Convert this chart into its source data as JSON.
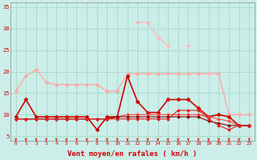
{
  "x": [
    0,
    1,
    2,
    3,
    4,
    5,
    6,
    7,
    8,
    9,
    10,
    11,
    12,
    13,
    14,
    15,
    16,
    17,
    18,
    19,
    20,
    21,
    22,
    23
  ],
  "series": [
    {
      "y": [
        15.5,
        19.0,
        20.5,
        17.5,
        17.0,
        17.0,
        17.0,
        17.0,
        17.0,
        15.5,
        15.5,
        19.5,
        19.5,
        19.5,
        19.5,
        19.5,
        19.5,
        19.5,
        19.5,
        19.5,
        19.5,
        10.0,
        10.0,
        10.0
      ],
      "color": "#ffaaaa",
      "lw": 1.0,
      "marker": "D",
      "ms": 2.0
    },
    {
      "y": [
        9.5,
        13.5,
        9.5,
        9.5,
        9.5,
        9.5,
        9.5,
        9.5,
        6.5,
        9.5,
        9.5,
        19.0,
        13.0,
        10.5,
        10.5,
        13.5,
        13.5,
        13.5,
        11.5,
        9.5,
        10.0,
        9.5,
        7.5,
        7.5
      ],
      "color": "#cc0000",
      "lw": 1.2,
      "marker": "D",
      "ms": 2.0
    },
    {
      "y": [
        9.0,
        9.0,
        9.0,
        9.0,
        9.0,
        9.0,
        9.0,
        9.0,
        9.0,
        9.0,
        9.5,
        10.0,
        10.0,
        10.0,
        10.0,
        10.0,
        10.0,
        10.0,
        10.0,
        9.5,
        9.0,
        8.5,
        7.5,
        7.5
      ],
      "color": "#ff4444",
      "lw": 0.8,
      "marker": "D",
      "ms": 1.5
    },
    {
      "y": [
        9.0,
        9.0,
        9.0,
        9.0,
        9.0,
        9.0,
        9.0,
        9.0,
        9.0,
        9.0,
        9.5,
        9.5,
        9.5,
        9.5,
        9.5,
        9.5,
        9.5,
        9.5,
        9.5,
        8.5,
        8.0,
        7.5,
        7.5,
        7.5
      ],
      "color": "#880000",
      "lw": 0.8,
      "marker": "D",
      "ms": 1.5
    },
    {
      "y": [
        9.0,
        9.0,
        9.0,
        9.0,
        9.0,
        9.0,
        9.0,
        9.0,
        9.0,
        9.0,
        9.0,
        9.0,
        9.0,
        9.0,
        9.0,
        9.0,
        11.0,
        11.0,
        11.0,
        9.0,
        7.5,
        6.5,
        7.5,
        7.5
      ],
      "color": "#dd2222",
      "lw": 0.8,
      "marker": "D",
      "ms": 1.5
    },
    {
      "y": [
        null,
        null,
        null,
        null,
        null,
        null,
        null,
        null,
        null,
        null,
        null,
        null,
        31.5,
        31.5,
        28.0,
        26.0,
        null,
        26.0,
        null,
        19.5,
        null,
        null,
        null,
        null
      ],
      "color": "#ffbbbb",
      "lw": 1.0,
      "marker": "D",
      "ms": 2.0
    }
  ],
  "wind_arrows_x": [
    0,
    1,
    2,
    3,
    4,
    5,
    6,
    7,
    8,
    9,
    10,
    11,
    12,
    13,
    14,
    15,
    16,
    17,
    18,
    19,
    20,
    21,
    22,
    23
  ],
  "xlabel": "Vent moyen/en rafales ( km/h )",
  "ylabel_ticks": [
    5,
    10,
    15,
    20,
    25,
    30,
    35
  ],
  "ylim": [
    4,
    36
  ],
  "xlim": [
    -0.5,
    23.5
  ],
  "bg_color": "#cceee8",
  "grid_color": "#aaddcc",
  "text_color": "#cc0000",
  "arrow_color": "#dd0000",
  "figsize": [
    3.2,
    2.0
  ],
  "dpi": 100
}
